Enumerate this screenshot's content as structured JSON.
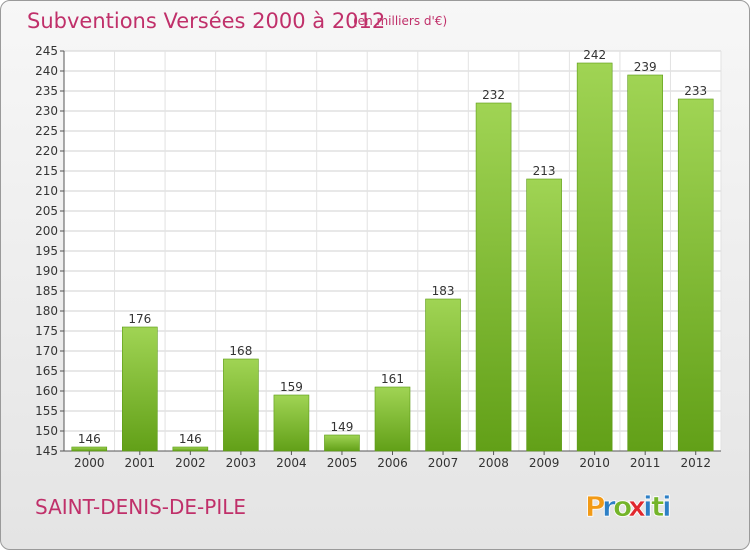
{
  "header": {
    "title": "Subventions Versées 2000 à 2012",
    "unit": "(en milliers d'€)"
  },
  "footer": {
    "commune": "SAINT-DENIS-DE-PILE",
    "brand": "Proxiti"
  },
  "colors": {
    "accent": "#c0306a",
    "bar_light": "#a0d454",
    "bar_dark": "#62a018",
    "logo_letters": [
      "#f29a16",
      "#2d7fc5",
      "#74b42a",
      "#e0282e",
      "#2d7fc5",
      "#74b42a",
      "#2d7fc5"
    ]
  },
  "chart_data": {
    "type": "bar",
    "categories": [
      "2000",
      "2001",
      "2002",
      "2003",
      "2004",
      "2005",
      "2006",
      "2007",
      "2008",
      "2009",
      "2010",
      "2011",
      "2012"
    ],
    "values": [
      146,
      176,
      146,
      168,
      159,
      149,
      161,
      183,
      232,
      213,
      242,
      239,
      233
    ],
    "ylim": [
      145,
      245
    ],
    "yticks": [
      145,
      150,
      155,
      160,
      165,
      170,
      175,
      180,
      185,
      190,
      195,
      200,
      205,
      210,
      215,
      220,
      225,
      230,
      235,
      240,
      245
    ],
    "grid": true,
    "data_labels": true
  }
}
